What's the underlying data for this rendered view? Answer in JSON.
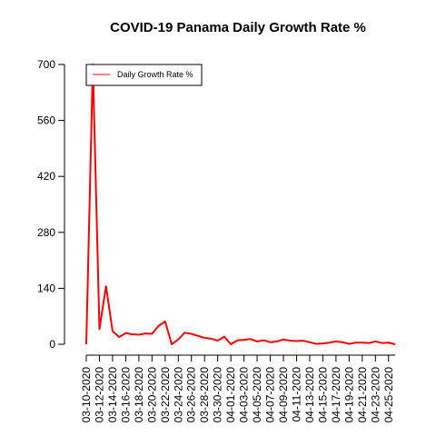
{
  "chart_data": {
    "type": "line",
    "title": "COVID-19 Panama Daily Growth Rate %",
    "xlabel": "",
    "ylabel": "",
    "ylim": [
      0,
      700
    ],
    "y_ticks": [
      0,
      140,
      280,
      420,
      560,
      700
    ],
    "grid": false,
    "legend_position": "top-left",
    "x_tick_labels": [
      "03-10-2020",
      "03-12-2020",
      "03-14-2020",
      "03-16-2020",
      "03-18-2020",
      "03-20-2020",
      "03-22-2020",
      "03-24-2020",
      "03-26-2020",
      "03-28-2020",
      "03-30-2020",
      "04-01-2020",
      "04-03-2020",
      "04-05-2020",
      "04-07-2020",
      "04-09-2020",
      "04-11-2020",
      "04-13-2020",
      "04-15-2020",
      "04-17-2020",
      "04-19-2020",
      "04-21-2020",
      "04-23-2020",
      "04-25-2020"
    ],
    "x": [
      "03-10-2020",
      "03-11-2020",
      "03-12-2020",
      "03-13-2020",
      "03-14-2020",
      "03-15-2020",
      "03-16-2020",
      "03-17-2020",
      "03-18-2020",
      "03-19-2020",
      "03-20-2020",
      "03-21-2020",
      "03-22-2020",
      "03-23-2020",
      "03-24-2020",
      "03-25-2020",
      "03-26-2020",
      "03-27-2020",
      "03-28-2020",
      "03-29-2020",
      "03-30-2020",
      "03-31-2020",
      "04-01-2020",
      "04-02-2020",
      "04-03-2020",
      "04-04-2020",
      "04-05-2020",
      "04-06-2020",
      "04-07-2020",
      "04-08-2020",
      "04-09-2020",
      "04-10-2020",
      "04-11-2020",
      "04-12-2020",
      "04-13-2020",
      "04-14-2020",
      "04-15-2020",
      "04-16-2020",
      "04-17-2020",
      "04-18-2020",
      "04-19-2020",
      "04-20-2020",
      "04-21-2020",
      "04-22-2020",
      "04-23-2020",
      "04-24-2020",
      "04-25-2020",
      "04-26-2020"
    ],
    "series": [
      {
        "name": "Daily Growth Rate %",
        "color": "#ff0000",
        "values": [
          0,
          700,
          38,
          145,
          33,
          18,
          28,
          25,
          24,
          27,
          26,
          46,
          57,
          0,
          12,
          29,
          26,
          21,
          16,
          14,
          9,
          19,
          0,
          10,
          11,
          13,
          7,
          10,
          5,
          7,
          12,
          9,
          8,
          9,
          5,
          1,
          2,
          4,
          7,
          5,
          1,
          4,
          4,
          3,
          7,
          3,
          4,
          0
        ]
      }
    ]
  }
}
